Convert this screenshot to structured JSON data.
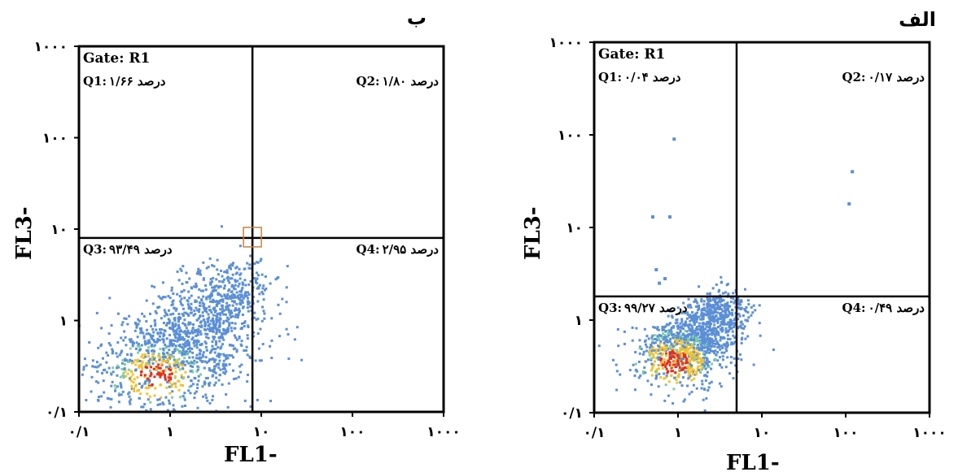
{
  "chart_data": [
    {
      "type": "scatter",
      "panel_label": "ب",
      "xlabel": "FL1-",
      "ylabel": "FL3-",
      "x_scale": "log",
      "y_scale": "log",
      "xlim": [
        0.1,
        1000
      ],
      "ylim": [
        0.1,
        1000
      ],
      "x_tick_labels": [
        "۰/۱",
        "۱",
        "۱۰",
        "۱۰۰",
        "۱۰۰۰"
      ],
      "y_tick_labels": [
        "۰/۱",
        "۱",
        "۱۰",
        "۱۰۰",
        "۱۰۰۰"
      ],
      "gate_label": "Gate: R1",
      "quadrant_divider": {
        "x": 8.0,
        "y": 8.0
      },
      "quadrants": [
        {
          "name": "Q1",
          "text": "Q1:",
          "value_text": "۱/۶۶ درصد",
          "percent": 1.66,
          "corner": "top-left"
        },
        {
          "name": "Q2",
          "text": "Q2:",
          "value_text": "۱/۸۰ درصد",
          "percent": 1.8,
          "corner": "top-right"
        },
        {
          "name": "Q3",
          "text": "Q3:",
          "value_text": "۹۳/۴۹ درصد",
          "percent": 93.49,
          "corner": "bottom-left"
        },
        {
          "name": "Q4",
          "text": "Q4:",
          "value_text": "۲/۹۵ درصد",
          "percent": 2.95,
          "corner": "bottom-right"
        }
      ],
      "population": {
        "count": 1500,
        "center": [
          0.7,
          0.25
        ],
        "spread": 0.45,
        "diagonal_to": [
          6,
          3
        ]
      },
      "colors": {
        "low": "#5b8fd6",
        "mid": "#f2c230",
        "high": "#e0301e",
        "gate_box": "#c8823c"
      }
    },
    {
      "type": "scatter",
      "panel_label": "الف",
      "xlabel": "FL1-",
      "ylabel": "FL3-",
      "x_scale": "log",
      "y_scale": "log",
      "xlim": [
        0.1,
        1000
      ],
      "ylim": [
        0.1,
        1000
      ],
      "x_tick_labels": [
        "۰/۱",
        "۱",
        "۱۰",
        "۱۰۰",
        "۱۰۰۰"
      ],
      "y_tick_labels": [
        "۰/۱",
        "۱",
        "۱۰",
        "۱۰۰",
        "۱۰۰۰"
      ],
      "gate_label": "Gate: R1",
      "quadrant_divider": {
        "x": 5.0,
        "y": 1.8
      },
      "quadrants": [
        {
          "name": "Q1",
          "text": "Q1:",
          "value_text": "۰/۰۴ درصد",
          "percent": 0.04,
          "corner": "top-left"
        },
        {
          "name": "Q2",
          "text": "Q2:",
          "value_text": "۰/۱۷ درصد",
          "percent": 0.17,
          "corner": "top-right"
        },
        {
          "name": "Q3",
          "text": "Q3:",
          "value_text": "۹۹/۲۷ درصد",
          "percent": 99.27,
          "corner": "bottom-left"
        },
        {
          "name": "Q4",
          "text": "Q4:",
          "value_text": "۰/۴۹ درصد",
          "percent": 0.49,
          "corner": "bottom-right"
        }
      ],
      "population": {
        "count": 1300,
        "center": [
          0.9,
          0.35
        ],
        "spread": 0.3,
        "diagonal_to": [
          4,
          1.6
        ]
      },
      "outliers": [
        [
          0.9,
          90
        ],
        [
          0.5,
          13
        ],
        [
          0.8,
          13
        ],
        [
          120,
          40
        ],
        [
          110,
          18
        ],
        [
          0.55,
          3.5
        ],
        [
          0.7,
          2.8
        ],
        [
          0.6,
          2.5
        ]
      ],
      "colors": {
        "low": "#5b8fd6",
        "mid": "#f2c230",
        "high": "#e0301e"
      }
    }
  ]
}
